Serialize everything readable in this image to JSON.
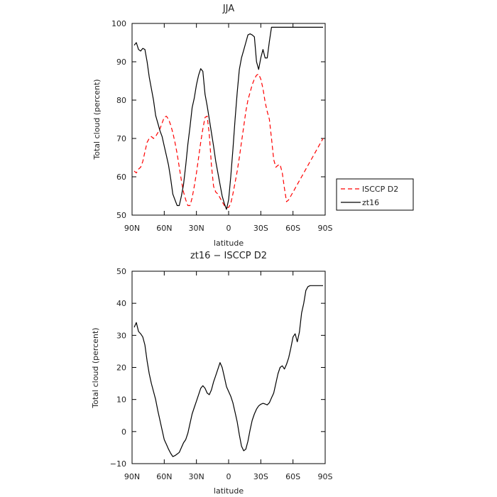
{
  "chart_data": [
    {
      "type": "line",
      "title": "JJA",
      "xlabel": "latitude",
      "ylabel": "Total cloud (percent)",
      "xlim": [
        90,
        -90
      ],
      "ylim": [
        50,
        100
      ],
      "x_ticks": [
        90,
        60,
        30,
        0,
        -30,
        -60,
        -90
      ],
      "x_tick_labels": [
        "90N",
        "60N",
        "30N",
        "0",
        "30S",
        "60S",
        "90S"
      ],
      "y_ticks": [
        50,
        60,
        70,
        80,
        90,
        100
      ],
      "y_tick_labels": [
        "50",
        "60",
        "70",
        "80",
        "90",
        "100"
      ],
      "legend_position": "right",
      "series": [
        {
          "name": "ISCCP D2",
          "color": "#ff0000",
          "dash": "dashed",
          "x": [
            88,
            86,
            84,
            82,
            80,
            78,
            76,
            74,
            72,
            70,
            68,
            66,
            64,
            62,
            60,
            58,
            56,
            54,
            52,
            50,
            48,
            46,
            44,
            42,
            40,
            38,
            36,
            34,
            32,
            30,
            28,
            26,
            24,
            22,
            20,
            18,
            16,
            14,
            12,
            10,
            8,
            6,
            4,
            2,
            0,
            -2,
            -4,
            -6,
            -8,
            -10,
            -12,
            -14,
            -16,
            -18,
            -20,
            -22,
            -24,
            -26,
            -28,
            -30,
            -32,
            -34,
            -36,
            -38,
            -40,
            -42,
            -44,
            -46,
            -48,
            -50,
            -52,
            -54,
            -56,
            -58,
            -60,
            -62,
            -64,
            -66,
            -68,
            -70,
            -72,
            -74,
            -76,
            -78,
            -80,
            -82,
            -84,
            -86,
            -88
          ],
          "y": [
            61.5,
            61,
            62,
            62.5,
            64,
            66.5,
            69,
            70,
            70.5,
            70,
            70.5,
            71.5,
            72.5,
            74,
            75.5,
            75.8,
            75,
            73.5,
            71.5,
            69,
            66,
            62.5,
            59,
            56,
            54,
            52.5,
            52.5,
            54.5,
            57.5,
            61,
            65,
            69,
            72.5,
            75.5,
            75.8,
            71,
            63,
            57.5,
            56,
            55.5,
            54.5,
            53.5,
            52.5,
            52,
            52,
            53,
            55.5,
            58.5,
            61.5,
            65,
            69,
            73,
            77,
            80,
            82,
            84,
            85.5,
            86.5,
            86.8,
            85.5,
            83,
            79.5,
            77,
            75,
            70,
            64.5,
            62.5,
            63,
            63.2,
            61,
            57,
            53.5,
            54,
            55,
            56,
            57,
            58,
            59,
            60,
            61,
            62,
            63,
            64,
            65,
            66,
            67,
            68,
            69,
            70
          ]
        },
        {
          "name": "zt16",
          "color": "#000000",
          "dash": "solid",
          "x": [
            88,
            86,
            84,
            82,
            80,
            78,
            76,
            74,
            72,
            70,
            68,
            66,
            64,
            62,
            60,
            58,
            56,
            54,
            52,
            50,
            48,
            46,
            44,
            42,
            40,
            38,
            36,
            34,
            32,
            30,
            28,
            26,
            24,
            22,
            20,
            18,
            16,
            14,
            12,
            10,
            8,
            6,
            4,
            2,
            0,
            -2,
            -4,
            -6,
            -8,
            -10,
            -12,
            -14,
            -16,
            -18,
            -20,
            -22,
            -24,
            -26,
            -28,
            -30,
            -32,
            -34,
            -36,
            -38,
            -40,
            -42,
            -44,
            -46,
            -48,
            -50,
            -52,
            -54,
            -56,
            -58,
            -60,
            -62,
            -64,
            -66,
            -68,
            -70,
            -72,
            -74,
            -76,
            -78,
            -80,
            -82,
            -84,
            -86,
            -88
          ],
          "y": [
            94.3,
            95,
            93.2,
            92.8,
            93.5,
            93.2,
            90,
            86,
            83,
            80,
            76,
            74,
            72,
            70.5,
            68,
            65.5,
            63,
            59.5,
            55.5,
            54,
            52.5,
            52.5,
            55,
            58,
            63,
            68.5,
            73,
            78,
            80.5,
            84,
            86.5,
            88.2,
            87.5,
            81.5,
            78.5,
            75,
            71.5,
            68,
            64,
            61,
            58,
            55,
            53,
            51.5,
            54,
            60,
            67,
            75,
            82,
            88,
            91,
            93,
            95,
            97,
            97.3,
            97,
            96.5,
            90,
            88,
            91,
            93.2,
            91,
            91,
            95.3,
            99,
            99,
            99,
            99,
            99,
            99,
            99,
            99,
            99,
            99,
            99,
            99,
            99,
            99,
            99,
            99,
            99,
            99,
            99,
            99,
            99,
            99,
            99,
            99,
            99
          ]
        }
      ]
    },
    {
      "type": "line",
      "title": "zt16 − ISCCP D2",
      "xlabel": "latitude",
      "ylabel": "Total cloud (percent)",
      "xlim": [
        90,
        -90
      ],
      "ylim": [
        -10,
        50
      ],
      "x_ticks": [
        90,
        60,
        30,
        0,
        -30,
        -60,
        -90
      ],
      "x_tick_labels": [
        "90N",
        "60N",
        "30N",
        "0",
        "30S",
        "60S",
        "90S"
      ],
      "y_ticks": [
        -10,
        0,
        10,
        20,
        30,
        40,
        50
      ],
      "y_tick_labels": [
        "−10",
        "0",
        "10",
        "20",
        "30",
        "40",
        "50"
      ],
      "series": [
        {
          "color": "#000000",
          "dash": "solid",
          "x": [
            88,
            86,
            84,
            82,
            80,
            78,
            76,
            74,
            72,
            70,
            68,
            66,
            64,
            62,
            60,
            58,
            56,
            54,
            52,
            50,
            48,
            46,
            44,
            42,
            40,
            38,
            36,
            34,
            32,
            30,
            28,
            26,
            24,
            22,
            20,
            18,
            16,
            14,
            12,
            10,
            8,
            6,
            4,
            2,
            0,
            -2,
            -4,
            -6,
            -8,
            -10,
            -12,
            -14,
            -16,
            -18,
            -20,
            -22,
            -24,
            -26,
            -28,
            -30,
            -32,
            -34,
            -36,
            -38,
            -40,
            -42,
            -44,
            -46,
            -48,
            -50,
            -52,
            -54,
            -56,
            -58,
            -60,
            -62,
            -64,
            -66,
            -68,
            -70,
            -72,
            -74,
            -76,
            -78,
            -80,
            -82,
            -84,
            -86,
            -88
          ],
          "y": [
            32.5,
            34,
            31.2,
            30.5,
            29.5,
            27,
            22,
            18,
            15,
            12.5,
            10,
            6.5,
            3.5,
            0.5,
            -2.5,
            -4,
            -5.5,
            -6.8,
            -7.8,
            -7.5,
            -7,
            -6.5,
            -5,
            -3.5,
            -2.5,
            -0.5,
            2.5,
            5.5,
            7.5,
            9.5,
            11.5,
            13.5,
            14.3,
            13.5,
            12,
            11.5,
            13,
            15.5,
            17.5,
            19.5,
            21.5,
            20,
            17,
            14,
            12.5,
            11,
            9,
            6,
            3,
            -1,
            -4.5,
            -6,
            -5.5,
            -3,
            0.5,
            3.5,
            5.5,
            7,
            8,
            8.5,
            8.8,
            8.6,
            8.3,
            9,
            10.5,
            12,
            15,
            18,
            20,
            20.5,
            19.5,
            21,
            23,
            26,
            29.5,
            30.5,
            28,
            31,
            37,
            40,
            44,
            45.2,
            45.5,
            45.5,
            45.5,
            45.5,
            45.5,
            45.5,
            45.5
          ]
        }
      ]
    }
  ]
}
